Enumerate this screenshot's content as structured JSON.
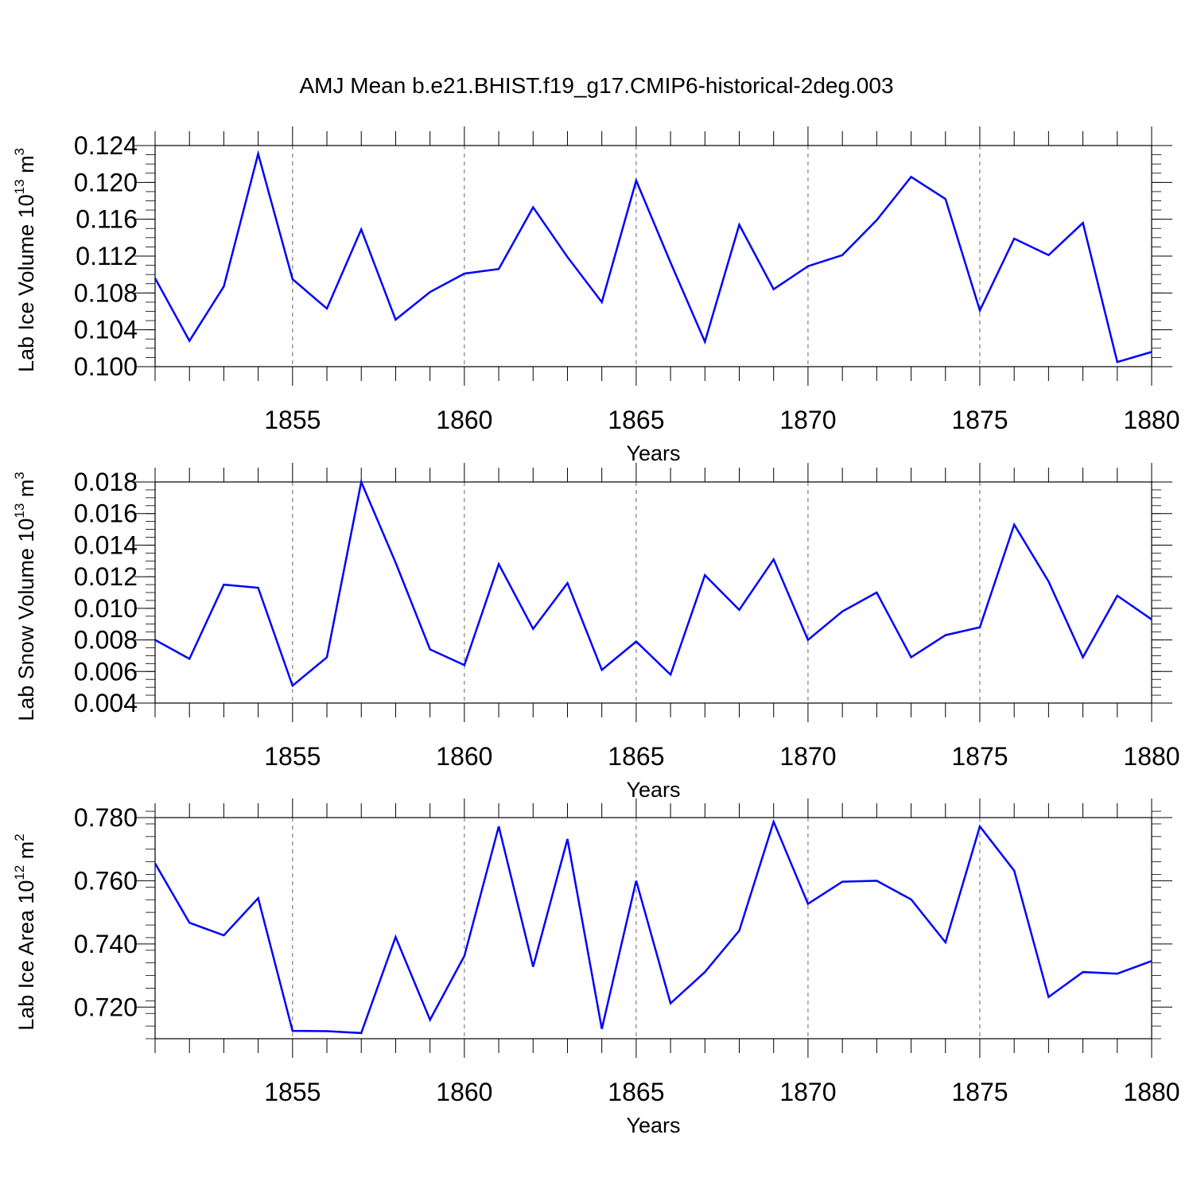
{
  "title": "AMJ Mean b.e21.BHIST.f19_g17.CMIP6-historical-2deg.003",
  "line_color": "#0000ff",
  "chart_data": [
    {
      "type": "line",
      "ylabel": {
        "text": "Lab Ice Volume 10",
        "exponent": "13",
        "unit": " m",
        "unit_exponent": "3"
      },
      "xlabel": "Years",
      "x": [
        1851,
        1852,
        1853,
        1854,
        1855,
        1856,
        1857,
        1858,
        1859,
        1860,
        1861,
        1862,
        1863,
        1864,
        1865,
        1866,
        1867,
        1868,
        1869,
        1870,
        1871,
        1872,
        1873,
        1874,
        1875,
        1876,
        1877,
        1878,
        1879,
        1880
      ],
      "series": [
        {
          "values": [
            0.1096,
            0.1028,
            0.1087,
            0.1231,
            0.1095,
            0.1063,
            0.1149,
            0.1051,
            0.1081,
            0.1101,
            0.1106,
            0.1173,
            0.1119,
            0.107,
            0.1202,
            0.1113,
            0.1027,
            0.1154,
            0.1084,
            0.1109,
            0.1121,
            0.1159,
            0.1206,
            0.1182,
            0.1061,
            0.1139,
            0.1121,
            0.1156,
            0.1005,
            0.1016
          ]
        }
      ],
      "xlim": [
        1851,
        1880
      ],
      "ylim": [
        0.1,
        0.124
      ],
      "yticks": [
        "0.100",
        "0.104",
        "0.108",
        "0.112",
        "0.116",
        "0.120",
        "0.124"
      ],
      "xticks": [
        "1855",
        "1860",
        "1865",
        "1870",
        "1875",
        "1880"
      ],
      "grid": "vertical dashed at labeled years"
    },
    {
      "type": "line",
      "ylabel": {
        "text": "Lab Snow Volume 10",
        "exponent": "13",
        "unit": " m",
        "unit_exponent": "3"
      },
      "xlabel": "Years",
      "x": [
        1851,
        1852,
        1853,
        1854,
        1855,
        1856,
        1857,
        1858,
        1859,
        1860,
        1861,
        1862,
        1863,
        1864,
        1865,
        1866,
        1867,
        1868,
        1869,
        1870,
        1871,
        1872,
        1873,
        1874,
        1875,
        1876,
        1877,
        1878,
        1879,
        1880
      ],
      "series": [
        {
          "values": [
            0.008,
            0.0068,
            0.0115,
            0.0113,
            0.0051,
            0.0069,
            0.018,
            0.0129,
            0.0074,
            0.0064,
            0.0128,
            0.0087,
            0.0116,
            0.0061,
            0.0079,
            0.0058,
            0.0121,
            0.0099,
            0.0131,
            0.008,
            0.0098,
            0.011,
            0.0069,
            0.0083,
            0.0088,
            0.0153,
            0.0117,
            0.0069,
            0.0108,
            0.0093
          ]
        }
      ],
      "xlim": [
        1851,
        1880
      ],
      "ylim": [
        0.004,
        0.018
      ],
      "yticks": [
        "0.004",
        "0.006",
        "0.008",
        "0.010",
        "0.012",
        "0.014",
        "0.016",
        "0.018"
      ],
      "xticks": [
        "1855",
        "1860",
        "1865",
        "1870",
        "1875",
        "1880"
      ],
      "grid": "vertical dashed at labeled years"
    },
    {
      "type": "line",
      "ylabel": {
        "text": "Lab Ice Area 10",
        "exponent": "12",
        "unit": " m",
        "unit_exponent": "2"
      },
      "xlabel": "Years",
      "x": [
        1851,
        1852,
        1853,
        1854,
        1855,
        1856,
        1857,
        1858,
        1859,
        1860,
        1861,
        1862,
        1863,
        1864,
        1865,
        1866,
        1867,
        1868,
        1869,
        1870,
        1871,
        1872,
        1873,
        1874,
        1875,
        1876,
        1877,
        1878,
        1879,
        1880
      ],
      "series": [
        {
          "values": [
            0.7655,
            0.7467,
            0.7427,
            0.7545,
            0.7125,
            0.7124,
            0.7118,
            0.7422,
            0.716,
            0.7362,
            0.7772,
            0.7328,
            0.7732,
            0.7131,
            0.76,
            0.7212,
            0.7311,
            0.7442,
            0.7787,
            0.7527,
            0.7597,
            0.76,
            0.7541,
            0.7405,
            0.7772,
            0.7632,
            0.7232,
            0.7311,
            0.7306,
            0.7346
          ]
        }
      ],
      "xlim": [
        1851,
        1880
      ],
      "ylim": [
        0.71,
        0.78
      ],
      "yticks": [
        "0.720",
        "0.740",
        "0.760",
        "0.780"
      ],
      "xticks": [
        "1855",
        "1860",
        "1865",
        "1870",
        "1875",
        "1880"
      ],
      "grid": "vertical dashed at labeled years"
    }
  ]
}
